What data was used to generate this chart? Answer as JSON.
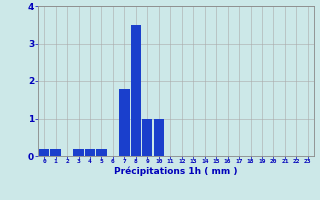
{
  "categories": [
    0,
    1,
    2,
    3,
    4,
    5,
    6,
    7,
    8,
    9,
    10,
    11,
    12,
    13,
    14,
    15,
    16,
    17,
    18,
    19,
    20,
    21,
    22,
    23
  ],
  "values": [
    0.2,
    0.2,
    0.0,
    0.2,
    0.2,
    0.2,
    0.0,
    1.8,
    3.5,
    1.0,
    1.0,
    0.0,
    0.0,
    0.0,
    0.0,
    0.0,
    0.0,
    0.0,
    0.0,
    0.0,
    0.0,
    0.0,
    0.0,
    0.0
  ],
  "bar_color": "#1a3fcc",
  "background_color": "#cce8e8",
  "grid_color": "#aaaaaa",
  "xlabel": "Précipitations 1h ( mm )",
  "xlabel_color": "#0000bb",
  "tick_color": "#0000bb",
  "ylim": [
    0,
    4
  ],
  "yticks": [
    0,
    1,
    2,
    3,
    4
  ],
  "figsize": [
    3.2,
    2.0
  ],
  "dpi": 100
}
